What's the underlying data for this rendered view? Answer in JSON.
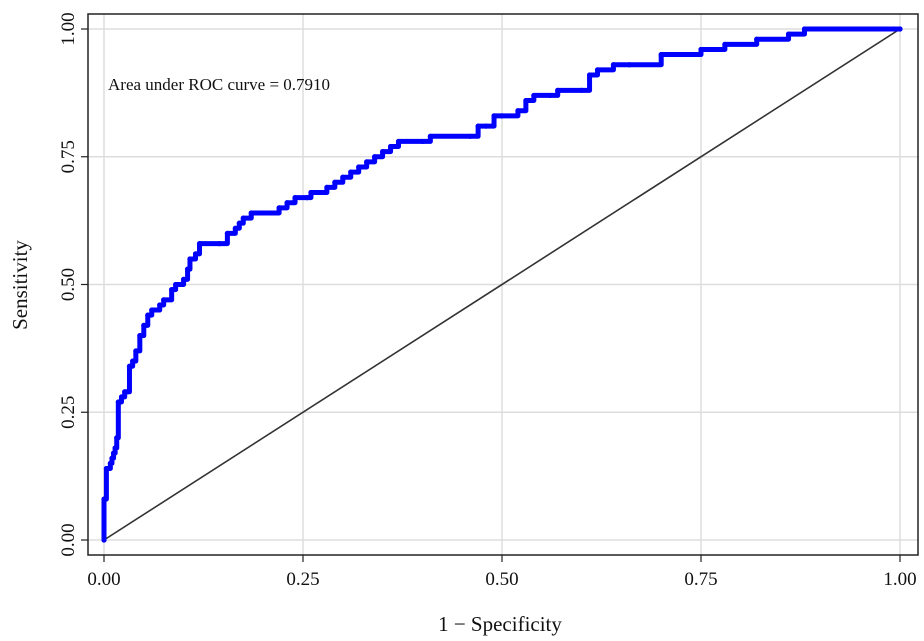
{
  "chart_data": {
    "type": "line",
    "xlabel": "1 − Specificity",
    "ylabel": "Sensitivity",
    "annotation": "Area under ROC curve = 0.7910",
    "xlim": [
      0,
      1
    ],
    "ylim": [
      0,
      1
    ],
    "xticks": [
      "0.00",
      "0.25",
      "0.50",
      "0.75",
      "1.00"
    ],
    "yticks": [
      "0.00",
      "0.25",
      "0.50",
      "0.75",
      "1.00"
    ],
    "grid": true,
    "legend": "none",
    "colors": {
      "roc": "#0000ff",
      "reference": "#333333",
      "grid": "#dddddd"
    },
    "series": [
      {
        "points": [
          [
            0,
            0
          ],
          [
            0,
            0.08
          ],
          [
            0.003,
            0.14
          ],
          [
            0.008,
            0.15
          ],
          [
            0.01,
            0.16
          ],
          [
            0.012,
            0.17
          ],
          [
            0.014,
            0.18
          ],
          [
            0.016,
            0.2
          ],
          [
            0.018,
            0.27
          ],
          [
            0.022,
            0.28
          ],
          [
            0.026,
            0.29
          ],
          [
            0.03,
            0.29
          ],
          [
            0.032,
            0.34
          ],
          [
            0.036,
            0.35
          ],
          [
            0.04,
            0.37
          ],
          [
            0.045,
            0.4
          ],
          [
            0.05,
            0.42
          ],
          [
            0.055,
            0.44
          ],
          [
            0.06,
            0.45
          ],
          [
            0.07,
            0.46
          ],
          [
            0.075,
            0.47
          ],
          [
            0.085,
            0.49
          ],
          [
            0.09,
            0.5
          ],
          [
            0.1,
            0.51
          ],
          [
            0.105,
            0.53
          ],
          [
            0.108,
            0.55
          ],
          [
            0.115,
            0.56
          ],
          [
            0.12,
            0.58
          ],
          [
            0.145,
            0.58
          ],
          [
            0.155,
            0.6
          ],
          [
            0.165,
            0.61
          ],
          [
            0.17,
            0.62
          ],
          [
            0.175,
            0.63
          ],
          [
            0.185,
            0.64
          ],
          [
            0.21,
            0.64
          ],
          [
            0.22,
            0.65
          ],
          [
            0.23,
            0.66
          ],
          [
            0.24,
            0.67
          ],
          [
            0.255,
            0.67
          ],
          [
            0.26,
            0.68
          ],
          [
            0.28,
            0.69
          ],
          [
            0.29,
            0.7
          ],
          [
            0.3,
            0.71
          ],
          [
            0.31,
            0.72
          ],
          [
            0.32,
            0.73
          ],
          [
            0.33,
            0.74
          ],
          [
            0.34,
            0.75
          ],
          [
            0.35,
            0.76
          ],
          [
            0.36,
            0.77
          ],
          [
            0.37,
            0.78
          ],
          [
            0.4,
            0.78
          ],
          [
            0.41,
            0.79
          ],
          [
            0.46,
            0.79
          ],
          [
            0.47,
            0.81
          ],
          [
            0.48,
            0.81
          ],
          [
            0.49,
            0.83
          ],
          [
            0.5,
            0.83
          ],
          [
            0.52,
            0.84
          ],
          [
            0.53,
            0.86
          ],
          [
            0.54,
            0.87
          ],
          [
            0.56,
            0.87
          ],
          [
            0.57,
            0.88
          ],
          [
            0.6,
            0.88
          ],
          [
            0.61,
            0.91
          ],
          [
            0.62,
            0.92
          ],
          [
            0.64,
            0.93
          ],
          [
            0.66,
            0.93
          ],
          [
            0.7,
            0.95
          ],
          [
            0.75,
            0.96
          ],
          [
            0.78,
            0.97
          ],
          [
            0.82,
            0.98
          ],
          [
            0.86,
            0.99
          ],
          [
            0.88,
            1
          ],
          [
            1,
            1
          ]
        ]
      },
      {
        "points": [
          [
            0,
            0
          ],
          [
            1,
            1
          ]
        ]
      }
    ]
  }
}
